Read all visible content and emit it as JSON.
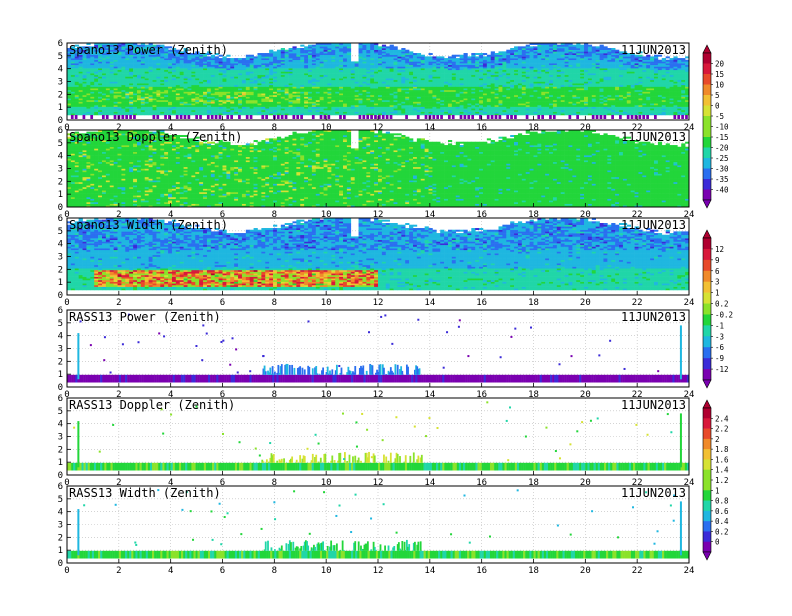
{
  "x_ticks": [
    "0",
    "2",
    "4",
    "6",
    "8",
    "10",
    "12",
    "14",
    "16",
    "18",
    "20",
    "22",
    "24"
  ],
  "y_ticks": [
    "0",
    "1",
    "2",
    "3",
    "4",
    "5",
    "6"
  ],
  "chart_data": [
    {
      "type": "heatmap",
      "title": "Spano13 Power (Zenith)",
      "date": "11JUN2013",
      "xlim": [
        0,
        24
      ],
      "ylim": [
        0,
        6
      ],
      "colorbar": 0
    },
    {
      "type": "heatmap",
      "title": "Spano13 Doppler (Zenith)",
      "date": "11JUN2013",
      "xlim": [
        0,
        24
      ],
      "ylim": [
        0,
        6
      ],
      "colorbar": 0
    },
    {
      "type": "heatmap",
      "title": "Spano13 Width (Zenith)",
      "date": "11JUN2013",
      "xlim": [
        0,
        24
      ],
      "ylim": [
        0,
        6
      ],
      "colorbar": 1
    },
    {
      "type": "heatmap",
      "title": "RASS13 Power (Zenith)",
      "date": "11JUN2013",
      "xlim": [
        0,
        24
      ],
      "ylim": [
        0,
        6
      ],
      "colorbar": 1
    },
    {
      "type": "heatmap",
      "title": "RASS13 Doppler (Zenith)",
      "date": "11JUN2013",
      "xlim": [
        0,
        24
      ],
      "ylim": [
        0,
        6
      ],
      "colorbar": 2
    },
    {
      "type": "heatmap",
      "title": "RASS13 Width (Zenith)",
      "date": "11JUN2013",
      "xlim": [
        0,
        24
      ],
      "ylim": [
        0,
        6
      ],
      "colorbar": 2
    }
  ],
  "colorbars": [
    {
      "labels": [
        "20",
        "15",
        "10",
        "5",
        "0",
        "-5",
        "-10",
        "-15",
        "-20",
        "-25",
        "-30",
        "-35",
        "-40"
      ]
    },
    {
      "labels": [
        "12",
        "9",
        "6",
        "3",
        "1",
        "0.2",
        "-0.2",
        "-1",
        "-3",
        "-6",
        "-9",
        "-12"
      ]
    },
    {
      "labels": [
        "2.4",
        "2.2",
        "2",
        "1.8",
        "1.6",
        "1.4",
        "1.2",
        "1",
        "0.8",
        "0.6",
        "0.4",
        "0.2",
        "0"
      ]
    }
  ],
  "colors": {
    "scale": [
      "#7a00b0",
      "#3b2bd8",
      "#2a6ff0",
      "#1fb7e0",
      "#20d6a8",
      "#22d63a",
      "#8be22a",
      "#d6e234",
      "#f2c033",
      "#f08a2a",
      "#e84a2a",
      "#d8183a",
      "#b00030"
    ]
  }
}
